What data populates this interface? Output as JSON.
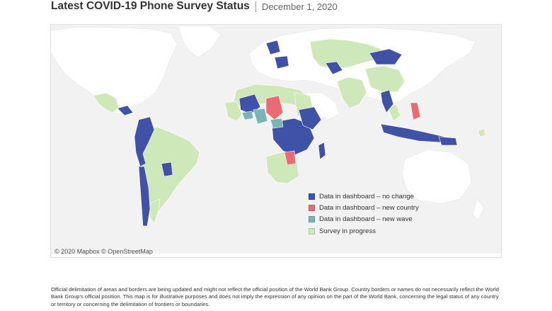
{
  "header": {
    "title": "Latest COVID-19 Phone Survey Status",
    "date": "December 1, 2020"
  },
  "map": {
    "credit": "© 2020 Mapbox © OpenStreetMap",
    "land_color": "#ffffff",
    "water_color": "#f2f2f2"
  },
  "legend": [
    {
      "label": "Data in dashboard – no change",
      "color": "#3f52a6"
    },
    {
      "label": "Data in dashboard – new country",
      "color": "#ea6b73"
    },
    {
      "label": "Data in dashboard – new wave",
      "color": "#77b6b4"
    },
    {
      "label": "Survey in progress",
      "color": "#cfe8b9"
    }
  ],
  "disclaimer": "Official delimitation of areas and borders are being updated and might not reflect the official position of the World Bank Group. Country borders or names do not necessarily reflect the World Bank Group's official position. This map is for illustrative purposes and does not imply the expression of any opinion on the part of the World Bank, concerning the legal status of any country or territory or concerning the delimitation of frontiers or boundaries."
}
